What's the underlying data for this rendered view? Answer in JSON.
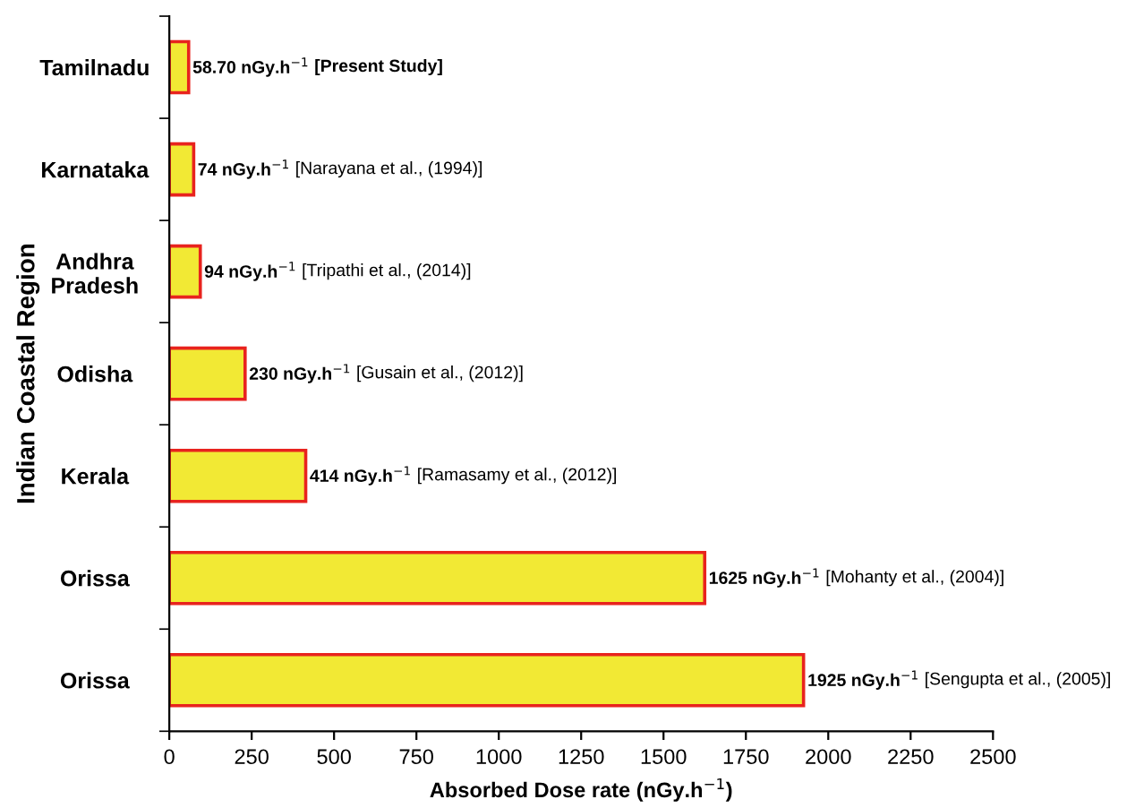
{
  "chart_data": {
    "type": "bar",
    "orientation": "horizontal",
    "categories": [
      "Tamilnadu",
      "Karnataka",
      "Andhra\nPradesh",
      "Odisha",
      "Kerala",
      "Orissa",
      "Orissa"
    ],
    "values": [
      58.7,
      74,
      94,
      230,
      414,
      1625,
      1925
    ],
    "color": "#f2e934",
    "value_labels": [
      "58.70 nGy.h$^{−1}$",
      "74 nGy.h$^{−1}$",
      "94 nGy.h$^{−1}$",
      "230 nGy.h$^{−1}$",
      "414 nGy.h$^{−1}$",
      "1625 nGy.h$^{−1}$",
      "1925 nGy.h$^{−1}$"
    ],
    "annotations": [
      "[Present Study]",
      "[Narayana et al., (1994)]",
      "[Tripathi et al., (2014)]",
      "[Gusain et al., (2012)]",
      "[Ramasamy et al., (2012)]",
      "[Mohanty et al., (2004)]",
      "[Sengupta et al., (2005)]"
    ],
    "xlabel": "Absorbed Dose rate (nGy.h$^{−1}$)",
    "ylabel": "Indian Coastal Region",
    "xlim": [
      0,
      2500
    ],
    "xticks": [
      0,
      250,
      500,
      750,
      1000,
      1250,
      1500,
      1750,
      2000,
      2250,
      2500
    ],
    "grid": false,
    "legend": false
  }
}
